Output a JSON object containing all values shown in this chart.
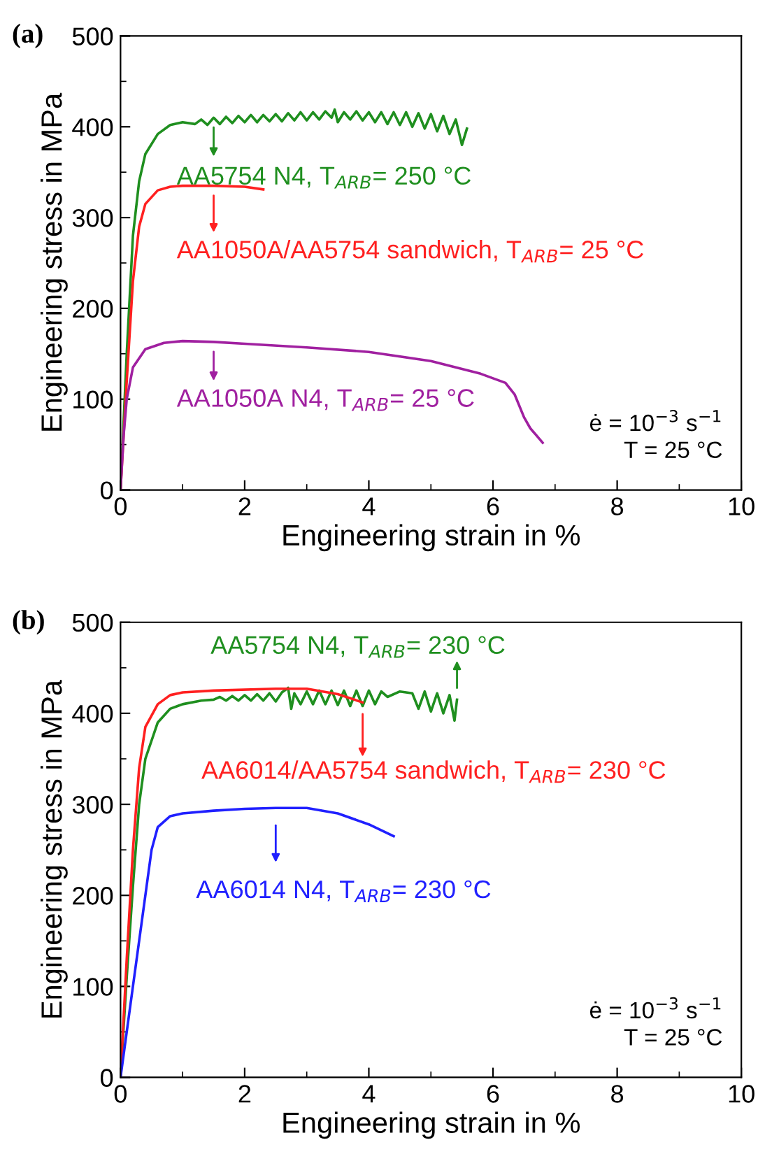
{
  "chart_data": [
    {
      "type": "line",
      "title": "(a)",
      "xlabel": "Engineering strain in %",
      "ylabel": "Engineering stress in MPa",
      "xlim": [
        0,
        10
      ],
      "ylim": [
        0,
        500
      ],
      "xticks": [
        0,
        2,
        4,
        6,
        8,
        10
      ],
      "yticks": [
        0,
        100,
        200,
        300,
        400,
        500
      ],
      "grid": false,
      "legend": "center",
      "annotations": [
        "ė = 10$^{−3}$ s$^{−1}$\nT = 25 °C"
      ],
      "series": [
        {
          "name": "AA5754 N4, T$_{ARB}$= 250 °C",
          "color": "#1f8f1f",
          "x": [
            0,
            0.1,
            0.2,
            0.3,
            0.4,
            0.6,
            0.8,
            1.0,
            1.2,
            1.3,
            1.4,
            1.5,
            1.6,
            1.7,
            1.8,
            1.9,
            2.0,
            2.1,
            2.2,
            2.3,
            2.4,
            2.5,
            2.6,
            2.7,
            2.8,
            2.9,
            3.0,
            3.1,
            3.2,
            3.3,
            3.4,
            3.45,
            3.5,
            3.6,
            3.7,
            3.8,
            3.9,
            4.0,
            4.1,
            4.2,
            4.3,
            4.4,
            4.5,
            4.6,
            4.7,
            4.8,
            4.9,
            5.0,
            5.1,
            5.2,
            5.3,
            5.4,
            5.5,
            5.58
          ],
          "values": [
            0,
            150,
            280,
            340,
            370,
            392,
            402,
            405,
            403,
            408,
            402,
            410,
            403,
            411,
            404,
            412,
            405,
            413,
            405,
            413,
            406,
            414,
            406,
            415,
            407,
            416,
            407,
            416,
            408,
            417,
            410,
            419,
            405,
            416,
            408,
            417,
            407,
            416,
            405,
            416,
            403,
            416,
            402,
            416,
            400,
            415,
            398,
            414,
            395,
            412,
            392,
            408,
            380,
            398
          ]
        },
        {
          "name": "AA1050A/AA5754 sandwich, T$_{ARB}$= 25 °C",
          "color": "#ff2020",
          "x": [
            0,
            0.1,
            0.2,
            0.3,
            0.4,
            0.6,
            0.8,
            1.0,
            1.5,
            2.0,
            2.3
          ],
          "values": [
            0,
            120,
            230,
            290,
            315,
            330,
            334,
            335,
            335,
            334,
            331
          ]
        },
        {
          "name": "AA1050A N4, T$_{ARB}$= 25 °C",
          "color": "#a020a0",
          "x": [
            0,
            0.05,
            0.1,
            0.2,
            0.4,
            0.7,
            1.0,
            1.5,
            2,
            3,
            4,
            5,
            5.8,
            6.2,
            6.35,
            6.5,
            6.6,
            6.8
          ],
          "values": [
            0,
            60,
            100,
            135,
            155,
            162,
            164,
            163,
            161,
            157,
            152,
            142,
            128,
            118,
            105,
            80,
            68,
            52
          ]
        }
      ]
    },
    {
      "type": "line",
      "title": "(b)",
      "xlabel": "Engineering strain in %",
      "ylabel": "Engineering stress in MPa",
      "xlim": [
        0,
        10
      ],
      "ylim": [
        0,
        500
      ],
      "xticks": [
        0,
        2,
        4,
        6,
        8,
        10
      ],
      "yticks": [
        0,
        100,
        200,
        300,
        400,
        500
      ],
      "grid": false,
      "legend": "center",
      "annotations": [
        "ė = 10$^{−3}$ s$^{−1}$\nT = 25 °C"
      ],
      "series": [
        {
          "name": "AA5754 N4, T$_{ARB}$= 230 °C",
          "color": "#1f8f1f",
          "x": [
            0,
            0.1,
            0.2,
            0.3,
            0.4,
            0.6,
            0.8,
            1.0,
            1.3,
            1.5,
            1.6,
            1.7,
            1.8,
            1.9,
            2.0,
            2.1,
            2.2,
            2.3,
            2.4,
            2.5,
            2.6,
            2.7,
            2.75,
            2.8,
            2.9,
            3.0,
            3.1,
            3.2,
            3.3,
            3.4,
            3.5,
            3.6,
            3.7,
            3.8,
            3.9,
            4.0,
            4.1,
            4.2,
            4.3,
            4.5,
            4.7,
            4.8,
            4.9,
            5.0,
            5.1,
            5.2,
            5.3,
            5.38,
            5.42
          ],
          "values": [
            0,
            110,
            210,
            300,
            350,
            390,
            405,
            410,
            414,
            415,
            418,
            414,
            419,
            414,
            420,
            414,
            421,
            414,
            422,
            413,
            423,
            428,
            405,
            422,
            410,
            424,
            410,
            425,
            410,
            425,
            409,
            425,
            408,
            425,
            408,
            425,
            410,
            424,
            418,
            424,
            422,
            405,
            424,
            402,
            422,
            400,
            420,
            392,
            415
          ]
        },
        {
          "name": "AA6014/AA5754 sandwich, T$_{ARB}$= 230 °C",
          "color": "#ff2020",
          "x": [
            0,
            0.1,
            0.2,
            0.3,
            0.4,
            0.6,
            0.8,
            1.0,
            1.5,
            2.5,
            3.0,
            3.5,
            3.9
          ],
          "values": [
            0,
            130,
            250,
            340,
            385,
            410,
            420,
            423,
            425,
            427,
            427,
            421,
            412
          ]
        },
        {
          "name": "AA6014 N4, T$_{ARB}$= 230 °C",
          "color": "#2020ff",
          "x": [
            0,
            0.2,
            0.4,
            0.5,
            0.6,
            0.8,
            1.0,
            1.5,
            2,
            2.5,
            3,
            3.5,
            4,
            4.4
          ],
          "values": [
            0,
            100,
            200,
            250,
            275,
            287,
            290,
            293,
            295,
            296,
            296,
            290,
            278,
            265
          ]
        }
      ]
    }
  ]
}
